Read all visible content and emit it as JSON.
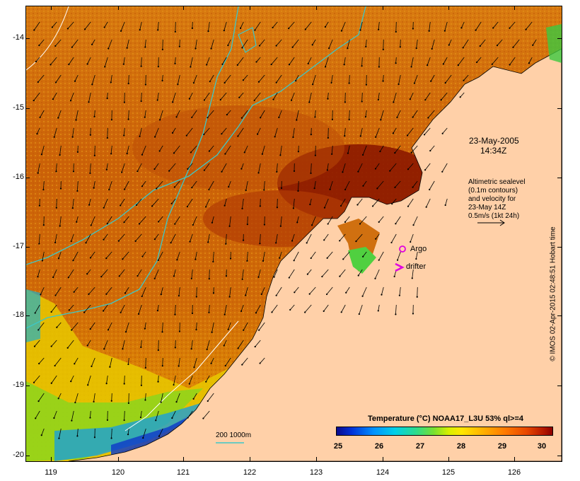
{
  "map": {
    "y_ticks": [
      "-14",
      "-15",
      "-16",
      "-17",
      "-18",
      "-19",
      "-20"
    ],
    "x_ticks": [
      "119",
      "120",
      "121",
      "122",
      "123",
      "124",
      "125",
      "126"
    ],
    "date_label": "23-May-2005",
    "time_label": "14:34Z",
    "info_lines": [
      "Altimetric sealevel",
      "(0.1m contours)",
      "and velocity for",
      "23-May 14Z",
      "0.5m/s (1kt 24h)"
    ],
    "argo_label": "Argo",
    "drifter_label": "drifter",
    "depth_label": "200  1000m",
    "timestamp": "© IMOS 02-Apr-2015 02:48:51 Hobart time",
    "colorbar": {
      "title": "Temperature (°C) NOAA17_L3U 53% ql>=4",
      "ticks": [
        "25",
        "26",
        "27",
        "28",
        "29",
        "30"
      ]
    },
    "colors": {
      "land": "#ffd0a8",
      "sst_warm": "#c85a00",
      "sst_hot": "#8c1800",
      "contour": "#3cc8c8",
      "argo": "#e000e0"
    },
    "icons": [
      "argo-circle-icon",
      "drifter-chevron-icon",
      "velocity-arrow-icon"
    ]
  }
}
